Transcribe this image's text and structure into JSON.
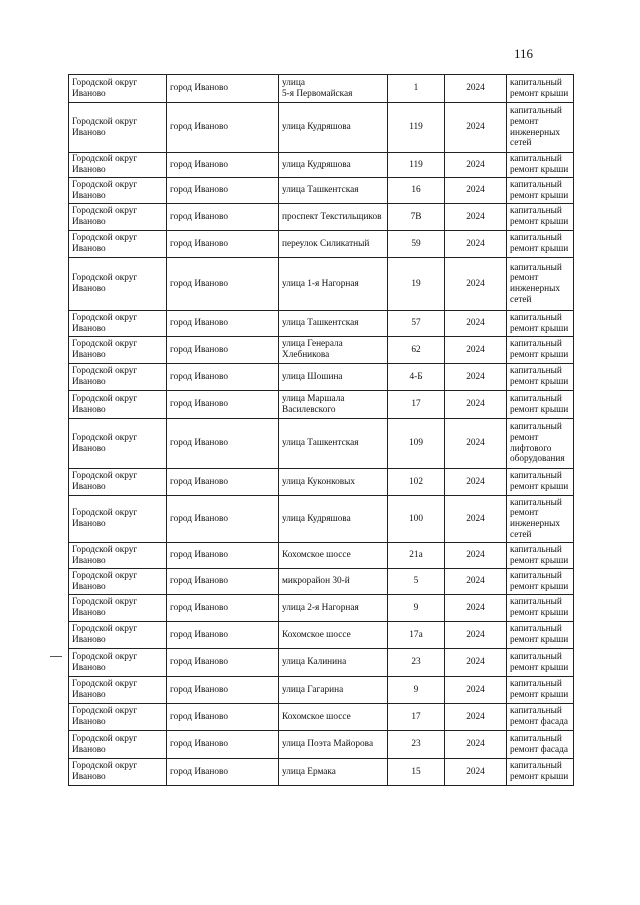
{
  "page_number": "116",
  "rows": [
    [
      "Городской округ Иваново",
      "город Иваново",
      "улица\n5-я Первомайская",
      "1",
      "2024",
      "капитальный ремонт крыши"
    ],
    [
      "Городской округ Иваново",
      "город Иваново",
      "улица Кудряшова",
      "119",
      "2024",
      "капитальный ремонт инженерных сетей"
    ],
    [
      "Городской округ Иваново",
      "город Иваново",
      "улица Кудряшова",
      "119",
      "2024",
      "капитальный ремонт крыши"
    ],
    [
      "Городской округ Иваново",
      "город Иваново",
      "улица Ташкентская",
      "16",
      "2024",
      "капитальный ремонт крыши"
    ],
    [
      "Городской округ Иваново",
      "город Иваново",
      "проспект Текстильщиков",
      "7В",
      "2024",
      "капитальный ремонт крыши"
    ],
    [
      "Городской округ Иваново",
      "город Иваново",
      "переулок Силикатный",
      "59",
      "2024",
      "капитальный ремонт крыши"
    ],
    [
      "Городской округ Иваново",
      "город Иваново",
      "улица 1-я Нагорная",
      "19",
      "2024",
      "капитальный ремонт инженерных сетей"
    ],
    [
      "Городской округ Иваново",
      "город Иваново",
      "улица Ташкентская",
      "57",
      "2024",
      "капитальный ремонт крыши"
    ],
    [
      "Городской округ Иваново",
      "город Иваново",
      "улица Генерала Хлебникова",
      "62",
      "2024",
      "капитальный ремонт крыши"
    ],
    [
      "Городской округ Иваново",
      "город Иваново",
      "улица Шошина",
      "4-Б",
      "2024",
      "капитальный ремонт крыши"
    ],
    [
      "Городской округ Иваново",
      "город Иваново",
      "улица Маршала Василевского",
      "17",
      "2024",
      "капитальный ремонт крыши"
    ],
    [
      "Городской округ Иваново",
      "город Иваново",
      "улица Ташкентская",
      "109",
      "2024",
      "капитальный ремонт лифтового оборудования"
    ],
    [
      "Городской округ Иваново",
      "город Иваново",
      "улица Куконковых",
      "102",
      "2024",
      "капитальный ремонт крыши"
    ],
    [
      "Городской округ Иваново",
      "город Иваново",
      "улица Кудряшова",
      "100",
      "2024",
      "капитальный ремонт инженерных сетей"
    ],
    [
      "Городской округ Иваново",
      "город Иваново",
      "Кохомское шоссе",
      "21а",
      "2024",
      "капитальный ремонт крыши"
    ],
    [
      "Городской округ Иваново",
      "город Иваново",
      "микрорайон 30-й",
      "5",
      "2024",
      "капитальный ремонт крыши"
    ],
    [
      "Городской округ Иваново",
      "город Иваново",
      "улица 2-я Нагорная",
      "9",
      "2024",
      "капитальный ремонт крыши"
    ],
    [
      "Городской округ Иваново",
      "город Иваново",
      "Кохомское шоссе",
      "17а",
      "2024",
      "капитальный ремонт крыши"
    ],
    [
      "Городской округ Иваново",
      "город Иваново",
      "улица Калинина",
      "23",
      "2024",
      "капитальный ремонт крыши"
    ],
    [
      "Городской округ Иваново",
      "город Иваново",
      "улица Гагарина",
      "9",
      "2024",
      "капитальный ремонт крыши"
    ],
    [
      "Городской округ Иваново",
      "город Иваново",
      "Кохомское шоссе",
      "17",
      "2024",
      "капитальный ремонт фасада"
    ],
    [
      "Городской округ Иваново",
      "город Иваново",
      "улица Поэта Майорова",
      "23",
      "2024",
      "капитальный ремонт фасада"
    ],
    [
      "Городской округ Иваново",
      "город Иваново",
      "улица Ермака",
      "15",
      "2024",
      "капитальный ремонт крыши"
    ]
  ]
}
